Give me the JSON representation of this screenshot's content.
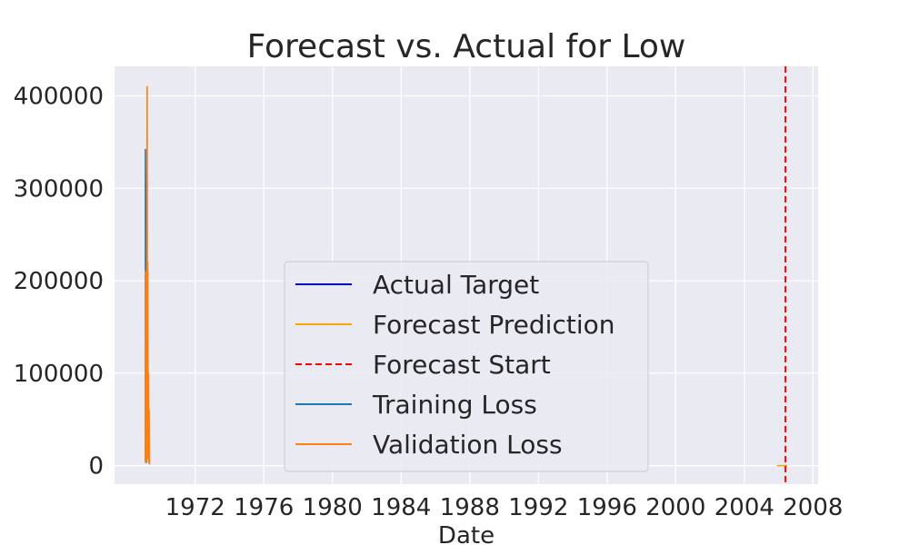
{
  "chart_data": {
    "type": "line",
    "title": "Forecast vs. Actual for Low",
    "xlabel": "Date",
    "ylabel": "",
    "xlim": [
      1967.3,
      2008.3
    ],
    "ylim": [
      -20000,
      432000
    ],
    "x_ticks": [
      "1972",
      "1976",
      "1980",
      "1984",
      "1988",
      "1992",
      "1996",
      "2000",
      "2004",
      "2008"
    ],
    "y_ticks": [
      "0",
      "100000",
      "200000",
      "300000",
      "400000"
    ],
    "grid": true,
    "legend_position": "center",
    "legend": [
      {
        "label": "Actual Target",
        "style": "solid",
        "color": "#0000cc"
      },
      {
        "label": "Forecast Prediction",
        "style": "solid",
        "color": "#ffa500"
      },
      {
        "label": "Forecast Start",
        "style": "dashed",
        "color": "#ff0000"
      },
      {
        "label": "Training Loss",
        "style": "solid",
        "color": "#1f77b4"
      },
      {
        "label": "Validation Loss",
        "style": "solid",
        "color": "#ff7f0e"
      }
    ],
    "series": [
      {
        "name": "Training Loss",
        "color": "#1f77b4",
        "x": [
          1969.1,
          1969.1,
          1969.12,
          1969.14,
          1969.16
        ],
        "y": [
          5000,
          342000,
          220000,
          60000,
          3000
        ]
      },
      {
        "name": "Validation Loss",
        "color": "#ff7f0e",
        "x": [
          1969.1,
          1969.12,
          1969.14,
          1969.16,
          1969.18,
          1969.2,
          1969.22,
          1969.24,
          1969.26,
          1969.28,
          1969.3,
          1969.32,
          1969.34,
          1969.36
        ],
        "y": [
          3000,
          210000,
          20000,
          140000,
          5000,
          410000,
          10000,
          220000,
          8000,
          100000,
          3000,
          60000,
          2000,
          2500
        ]
      },
      {
        "name": "Forecast Prediction",
        "color": "#ffa500",
        "x": [
          2005.9,
          2006.5
        ],
        "y": [
          0,
          0
        ]
      }
    ],
    "forecast_start_x": 2006.4
  }
}
